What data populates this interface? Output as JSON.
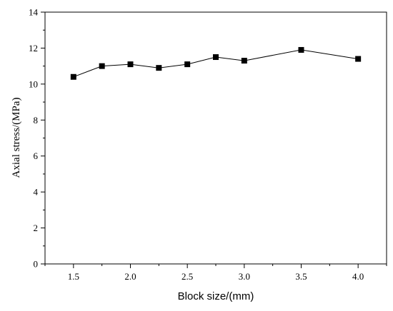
{
  "chart_data": {
    "type": "line",
    "title": "",
    "xlabel": "Block size/(mm)",
    "ylabel": "Axial stress/(MPa)",
    "xlim": [
      1.25,
      4.25
    ],
    "ylim": [
      0,
      14
    ],
    "x_ticks": [
      "1.5",
      "2.0",
      "2.5",
      "3.0",
      "3.5",
      "4.0"
    ],
    "y_ticks": [
      "0",
      "2",
      "4",
      "6",
      "8",
      "10",
      "12",
      "14"
    ],
    "grid": false,
    "legend": "none",
    "marker": "square",
    "colors": {
      "line": "#000000",
      "marker": "#000000"
    },
    "series": [
      {
        "x": [
          1.5,
          1.75,
          2.0,
          2.25,
          2.5,
          2.75,
          3.0,
          3.5,
          4.0
        ],
        "y": [
          10.4,
          11.0,
          11.1,
          10.9,
          11.1,
          11.5,
          11.3,
          11.9,
          11.4
        ]
      }
    ]
  }
}
